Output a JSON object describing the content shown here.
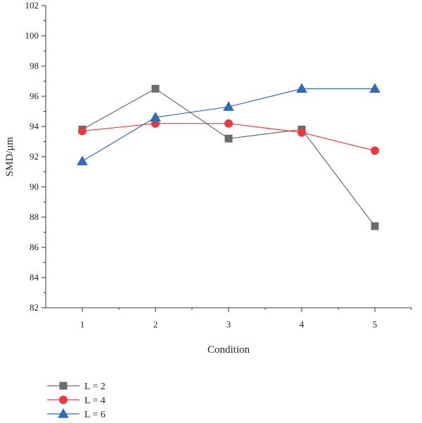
{
  "chart_data": {
    "type": "line",
    "title": "",
    "xlabel": "Condition",
    "ylabel": "SMD/μm",
    "x": [
      1,
      2,
      3,
      4,
      5
    ],
    "xlim": [
      0.5,
      5.5
    ],
    "ylim": [
      82,
      102
    ],
    "yticks": [
      82,
      84,
      86,
      88,
      90,
      92,
      94,
      96,
      98,
      100,
      102
    ],
    "grid": false,
    "legend_position": "bottom-left",
    "series": [
      {
        "name": "L = 2",
        "values": [
          93.8,
          96.5,
          93.2,
          93.8,
          87.4
        ],
        "color": "#6b6b6b",
        "marker": "square"
      },
      {
        "name": "L = 4",
        "values": [
          93.7,
          94.2,
          94.2,
          93.6,
          92.4
        ],
        "color": "#e8393f",
        "marker": "circle"
      },
      {
        "name": "L = 6",
        "values": [
          91.7,
          94.6,
          95.3,
          96.5,
          96.5
        ],
        "color": "#2f6db5",
        "marker": "triangle"
      }
    ]
  }
}
